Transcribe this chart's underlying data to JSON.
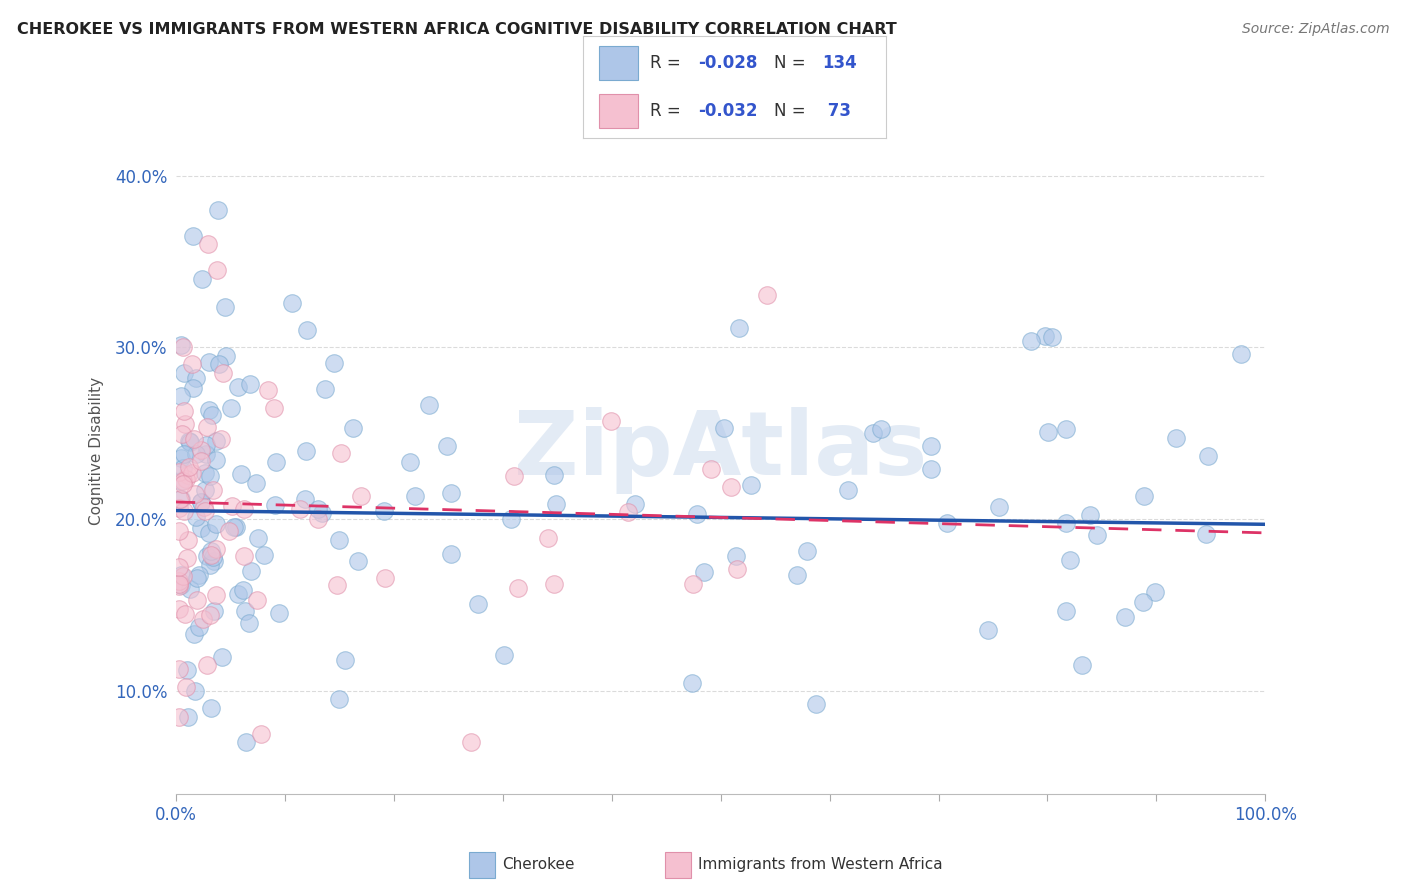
{
  "title": "CHEROKEE VS IMMIGRANTS FROM WESTERN AFRICA COGNITIVE DISABILITY CORRELATION CHART",
  "source": "Source: ZipAtlas.com",
  "ylabel": "Cognitive Disability",
  "cherokee_color": "#aec6e8",
  "cherokee_edge_color": "#7aaad0",
  "immigrant_color": "#f5c0d0",
  "immigrant_edge_color": "#e090aa",
  "cherokee_line_color": "#2255aa",
  "immigrant_line_color": "#dd3366",
  "legend_color": "#3355cc",
  "yticks": [
    0.1,
    0.2,
    0.3,
    0.4
  ],
  "ytick_labels": [
    "10.0%",
    "20.0%",
    "30.0%",
    "40.0%"
  ],
  "xtick_labels_show": [
    "0.0%",
    "100.0%"
  ],
  "ylim_lo": 0.04,
  "ylim_hi": 0.44,
  "cherokee_R": -0.028,
  "cherokee_N": 134,
  "immigrant_R": -0.032,
  "immigrant_N": 73,
  "watermark": "ZipAtlas",
  "background_color": "#ffffff",
  "grid_color": "#cccccc",
  "tick_label_color": "#3366bb"
}
